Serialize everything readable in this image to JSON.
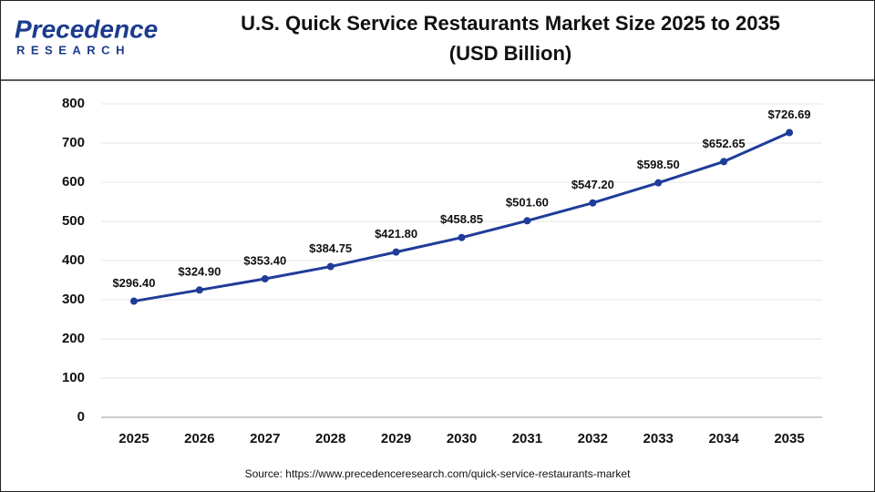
{
  "logo": {
    "name": "Precedence",
    "tagline": "RESEARCH"
  },
  "chart_data": {
    "type": "line",
    "title": "U.S. Quick Service Restaurants Market Size 2025 to 2035",
    "subtitle": "(USD Billion)",
    "categories": [
      "2025",
      "2026",
      "2027",
      "2028",
      "2029",
      "2030",
      "2031",
      "2032",
      "2033",
      "2034",
      "2035"
    ],
    "values": [
      296.4,
      324.9,
      353.4,
      384.75,
      421.8,
      458.85,
      501.6,
      547.2,
      598.5,
      652.65,
      726.69
    ],
    "value_labels": [
      "$296.40",
      "$324.90",
      "$353.40",
      "$384.75",
      "$421.80",
      "$458.85",
      "$501.60",
      "$547.20",
      "$598.50",
      "$652.65",
      "$726.69"
    ],
    "color": "#1f3c98",
    "ylim": [
      0,
      800
    ],
    "yticks": [
      0,
      100,
      200,
      300,
      400,
      500,
      600,
      700,
      800
    ],
    "grid": true,
    "source": "Source: https://www.precedenceresearch.com/quick-service-restaurants-market"
  }
}
